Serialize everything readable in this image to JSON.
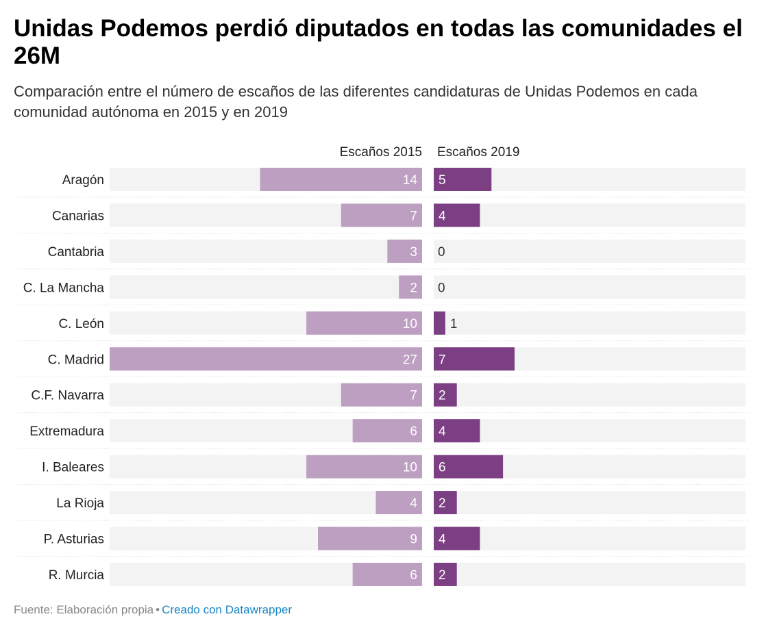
{
  "title": "Unidas Podemos perdió diputados en todas las comunidades el 26M",
  "subtitle": "Comparación entre el número de escaños de las diferentes candidaturas de Unidas Podemos en cada comunidad autónoma en 2015 y en 2019",
  "footer": {
    "source": "Fuente: Elaboración propia",
    "separator": "•",
    "credit": "Creado con Datawrapper"
  },
  "colors": {
    "series_2015": "#bd9fc1",
    "series_2019": "#7c3f83",
    "track": "#f3f3f3"
  },
  "chart_data": {
    "type": "bar",
    "categories": [
      "Aragón",
      "Canarias",
      "Cantabria",
      "C. La Mancha",
      "C. León",
      "C. Madrid",
      "C.F. Navarra",
      "Extremadura",
      "I. Baleares",
      "La Rioja",
      "P. Asturias",
      "R. Murcia"
    ],
    "series": [
      {
        "name": "Escaños 2015",
        "values": [
          14,
          7,
          3,
          2,
          10,
          27,
          7,
          6,
          10,
          4,
          9,
          6
        ]
      },
      {
        "name": "Escaños 2019",
        "values": [
          5,
          4,
          0,
          0,
          1,
          7,
          2,
          4,
          6,
          2,
          4,
          2
        ]
      }
    ],
    "xlim": [
      0,
      27
    ],
    "grid": false,
    "legend": "top"
  }
}
